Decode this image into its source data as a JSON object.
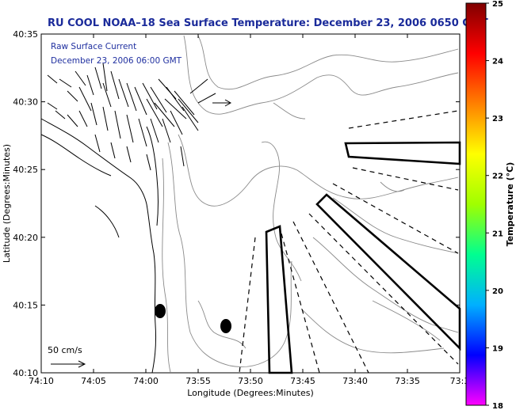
{
  "title": "RU COOL  NOAA–18  Sea Surface Temperature:  December 23, 2006 0650 GMT",
  "legend": {
    "line1": "Raw Surface Current",
    "line2": "December 23, 2006 06:00 GMT"
  },
  "scale": {
    "label": "50 cm/s"
  },
  "axes": {
    "xlabel": "Longitude (Degrees:Minutes)",
    "ylabel": "Latitude (Degrees:Minutes)",
    "xticks": [
      "74:10",
      "74:05",
      "74:00",
      "73:55",
      "73:50",
      "73:45",
      "73:40",
      "73:35",
      "73:3"
    ],
    "yticks": [
      "40:35",
      "40:30",
      "40:25",
      "40:20",
      "40:15",
      "40:10"
    ]
  },
  "colorbar": {
    "label": "Temperature (°C)",
    "ticks": [
      "25",
      "24",
      "23",
      "22",
      "21",
      "20",
      "19",
      "18"
    ],
    "range": [
      18,
      25
    ],
    "colors": [
      "#ff00ff",
      "#0000ff",
      "#00b0ff",
      "#00ff90",
      "#a0ff00",
      "#ffff00",
      "#ff8000",
      "#ff0000",
      "#800000"
    ]
  }
}
